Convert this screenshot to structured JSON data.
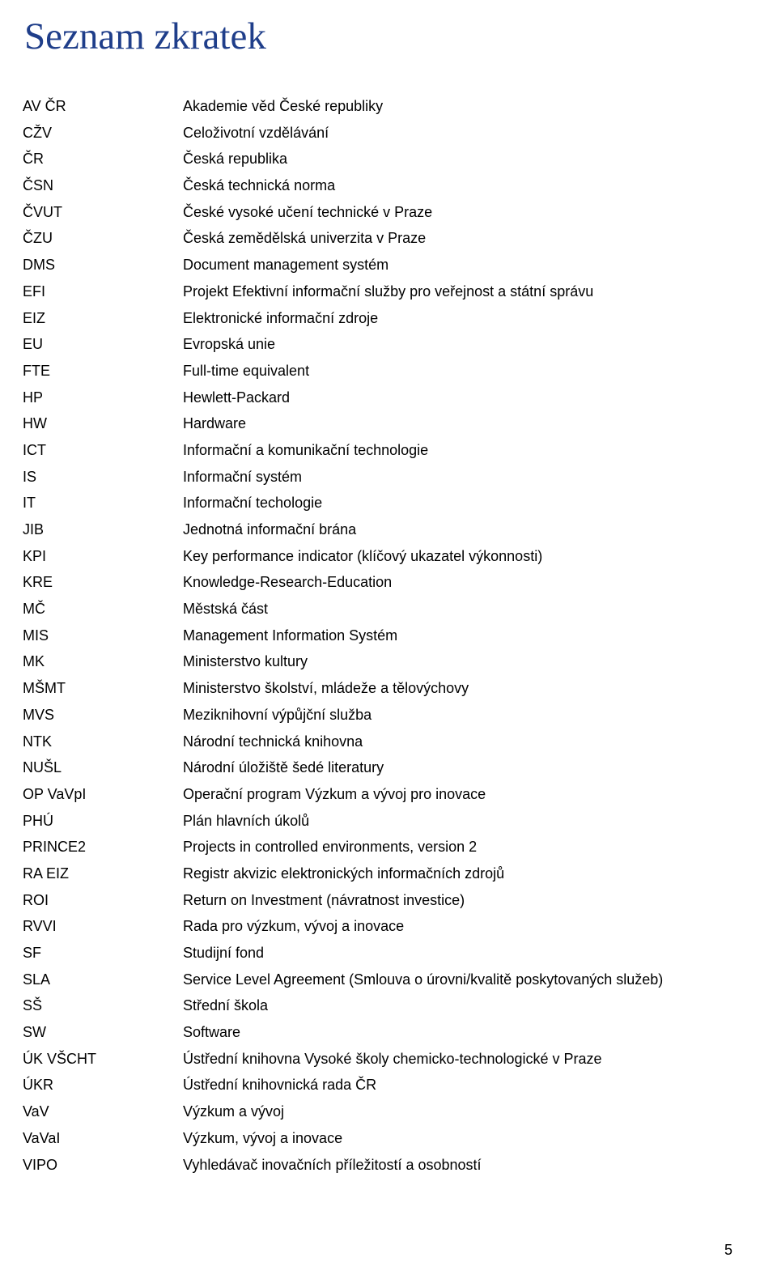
{
  "title": "Seznam zkratek",
  "page_number": "5",
  "rows": [
    {
      "abbrev": "AV ČR",
      "def": "Akademie věd České republiky"
    },
    {
      "abbrev": "CŽV",
      "def": "Celoživotní vzdělávání"
    },
    {
      "abbrev": "ČR",
      "def": "Česká republika"
    },
    {
      "abbrev": "ČSN",
      "def": "Česká technická norma"
    },
    {
      "abbrev": "ČVUT",
      "def": "České vysoké učení technické v Praze"
    },
    {
      "abbrev": "ČZU",
      "def": "Česká zemědělská univerzita v Praze"
    },
    {
      "abbrev": "DMS",
      "def": "Document management systém"
    },
    {
      "abbrev": "EFI",
      "def": "Projekt Efektivní informační služby pro veřejnost a státní správu"
    },
    {
      "abbrev": "EIZ",
      "def": "Elektronické informační zdroje"
    },
    {
      "abbrev": "EU",
      "def": "Evropská unie"
    },
    {
      "abbrev": "FTE",
      "def": "Full-time equivalent"
    },
    {
      "abbrev": "HP",
      "def": "Hewlett-Packard"
    },
    {
      "abbrev": "HW",
      "def": "Hardware"
    },
    {
      "abbrev": "ICT",
      "def": "Informační a komunikační technologie"
    },
    {
      "abbrev": "IS",
      "def": "Informační systém"
    },
    {
      "abbrev": "IT",
      "def": "Informační techologie"
    },
    {
      "abbrev": "JIB",
      "def": "Jednotná informační brána"
    },
    {
      "abbrev": "KPI",
      "def": "Key performance indicator (klíčový ukazatel výkonnosti)"
    },
    {
      "abbrev": "KRE",
      "def": "Knowledge-Research-Education"
    },
    {
      "abbrev": "MČ",
      "def": "Městská část"
    },
    {
      "abbrev": "MIS",
      "def": "Management Information Systém"
    },
    {
      "abbrev": "MK",
      "def": "Ministerstvo kultury"
    },
    {
      "abbrev": "MŠMT",
      "def": "Ministerstvo školství, mládeže a tělovýchovy"
    },
    {
      "abbrev": "MVS",
      "def": "Meziknihovní výpůjční služba"
    },
    {
      "abbrev": "NTK",
      "def": "Národní technická knihovna"
    },
    {
      "abbrev": "NUŠL",
      "def": "Národní úložiště šedé literatury"
    },
    {
      "abbrev": "OP VaVpI",
      "def": "Operační program Výzkum a vývoj pro inovace"
    },
    {
      "abbrev": "PHÚ",
      "def": "Plán hlavních úkolů"
    },
    {
      "abbrev": "PRINCE2",
      "def": "Projects in controlled environments, version 2"
    },
    {
      "abbrev": "RA EIZ",
      "def": "Registr akvizic elektronických informačních zdrojů"
    },
    {
      "abbrev": "ROI",
      "def": "Return on Investment (návratnost investice)"
    },
    {
      "abbrev": "RVVI",
      "def": "Rada pro výzkum, vývoj a inovace"
    },
    {
      "abbrev": "SF",
      "def": "Studijní fond"
    },
    {
      "abbrev": "SLA",
      "def": "Service Level Agreement (Smlouva o úrovni/kvalitě poskytovaných služeb)"
    },
    {
      "abbrev": "SŠ",
      "def": "Střední škola"
    },
    {
      "abbrev": "SW",
      "def": "Software"
    },
    {
      "abbrev": "ÚK VŠCHT",
      "def": "Ústřední knihovna Vysoké školy chemicko-technologické v Praze"
    },
    {
      "abbrev": "ÚKR",
      "def": "Ústřední knihovnická rada ČR"
    },
    {
      "abbrev": "VaV",
      "def": "Výzkum a vývoj"
    },
    {
      "abbrev": "VaVaI",
      "def": "Výzkum, vývoj a inovace"
    },
    {
      "abbrev": "VIPO",
      "def": "Vyhledávač inovačních příležitostí a osobností"
    }
  ]
}
